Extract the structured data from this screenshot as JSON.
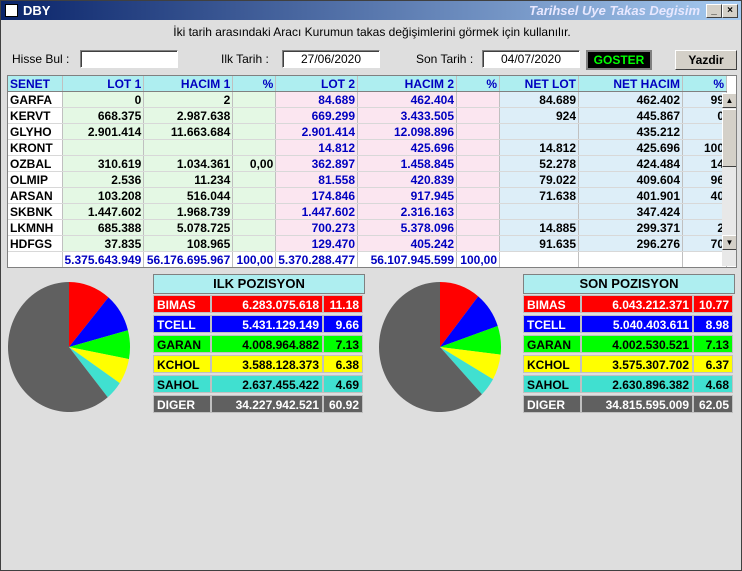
{
  "window": {
    "title": "DBY",
    "subtitle": "Tarihsel Uye Takas Degisim"
  },
  "info_text": "İki tarih arasındaki  Aracı Kurumun takas değişimlerini görmek için kullanılır.",
  "toolbar": {
    "search_label": "Hisse Bul :",
    "search_value": "",
    "start_label": "Ilk Tarih :",
    "start_date": "27/06/2020",
    "end_label": "Son Tarih :",
    "end_date": "04/07/2020",
    "show_button": "GOSTER",
    "print_button": "Yazdir"
  },
  "table": {
    "headers": [
      "SENET",
      "LOT 1",
      "HACIM 1",
      "%",
      "LOT 2",
      "HACIM 2",
      "%",
      "NET LOT",
      "NET HACIM",
      "%"
    ],
    "rows": [
      [
        "GARFA",
        "0",
        "2",
        "",
        "84.689",
        "462.404",
        "",
        "84.689",
        "462.402",
        "99"
      ],
      [
        "KERVT",
        "668.375",
        "2.987.638",
        "",
        "669.299",
        "3.433.505",
        "",
        "924",
        "445.867",
        "0"
      ],
      [
        "GLYHO",
        "2.901.414",
        "11.663.684",
        "",
        "2.901.414",
        "12.098.896",
        "",
        "",
        "435.212",
        ""
      ],
      [
        "KRONT",
        "",
        "",
        "",
        "14.812",
        "425.696",
        "",
        "14.812",
        "425.696",
        "100"
      ],
      [
        "OZBAL",
        "310.619",
        "1.034.361",
        "0,00",
        "362.897",
        "1.458.845",
        "",
        "52.278",
        "424.484",
        "14"
      ],
      [
        "OLMIP",
        "2.536",
        "11.234",
        "",
        "81.558",
        "420.839",
        "",
        "79.022",
        "409.604",
        "96"
      ],
      [
        "ARSAN",
        "103.208",
        "516.044",
        "",
        "174.846",
        "917.945",
        "",
        "71.638",
        "401.901",
        "40"
      ],
      [
        "SKBNK",
        "1.447.602",
        "1.968.739",
        "",
        "1.447.602",
        "2.316.163",
        "",
        "",
        "347.424",
        ""
      ],
      [
        "LKMNH",
        "685.388",
        "5.078.725",
        "",
        "700.273",
        "5.378.096",
        "",
        "14.885",
        "299.371",
        "2"
      ],
      [
        "HDFGS",
        "37.835",
        "108.965",
        "",
        "129.470",
        "405.242",
        "",
        "91.635",
        "296.276",
        "70"
      ]
    ],
    "totals": [
      "",
      "5.375.643.949",
      "56.176.695.967",
      "100,00",
      "5.370.288.477",
      "56.107.945.599",
      "100,00",
      "",
      "",
      ""
    ]
  },
  "ilk": {
    "title": "ILK POZISYON",
    "rows": [
      {
        "name": "BIMAS",
        "value": "6.283.075.618",
        "pct": "11.18",
        "pct_num": 11.18,
        "color": "#ff0000",
        "text": "#ffffff"
      },
      {
        "name": "TCELL",
        "value": "5.431.129.149",
        "pct": "9.66",
        "pct_num": 9.66,
        "color": "#0000ff",
        "text": "#ffffff"
      },
      {
        "name": "GARAN",
        "value": "4.008.964.882",
        "pct": "7.13",
        "pct_num": 7.13,
        "color": "#00ff00",
        "text": "#000000"
      },
      {
        "name": "KCHOL",
        "value": "3.588.128.373",
        "pct": "6.38",
        "pct_num": 6.38,
        "color": "#ffff00",
        "text": "#000000"
      },
      {
        "name": "SAHOL",
        "value": "2.637.455.422",
        "pct": "4.69",
        "pct_num": 4.69,
        "color": "#40e0d0",
        "text": "#000000"
      },
      {
        "name": "DIGER",
        "value": "34.227.942.521",
        "pct": "60.92",
        "pct_num": 60.92,
        "color": "#606060",
        "text": "#ffffff"
      }
    ]
  },
  "son": {
    "title": "SON POZISYON",
    "rows": [
      {
        "name": "BIMAS",
        "value": "6.043.212.371",
        "pct": "10.77",
        "pct_num": 10.77,
        "color": "#ff0000",
        "text": "#ffffff"
      },
      {
        "name": "TCELL",
        "value": "5.040.403.611",
        "pct": "8.98",
        "pct_num": 8.98,
        "color": "#0000ff",
        "text": "#ffffff"
      },
      {
        "name": "GARAN",
        "value": "4.002.530.521",
        "pct": "7.13",
        "pct_num": 7.13,
        "color": "#00ff00",
        "text": "#000000"
      },
      {
        "name": "KCHOL",
        "value": "3.575.307.702",
        "pct": "6.37",
        "pct_num": 6.37,
        "color": "#ffff00",
        "text": "#000000"
      },
      {
        "name": "SAHOL",
        "value": "2.630.896.382",
        "pct": "4.68",
        "pct_num": 4.68,
        "color": "#40e0d0",
        "text": "#000000"
      },
      {
        "name": "DIGER",
        "value": "34.815.595.009",
        "pct": "62.05",
        "pct_num": 62.05,
        "color": "#606060",
        "text": "#ffffff"
      }
    ]
  }
}
